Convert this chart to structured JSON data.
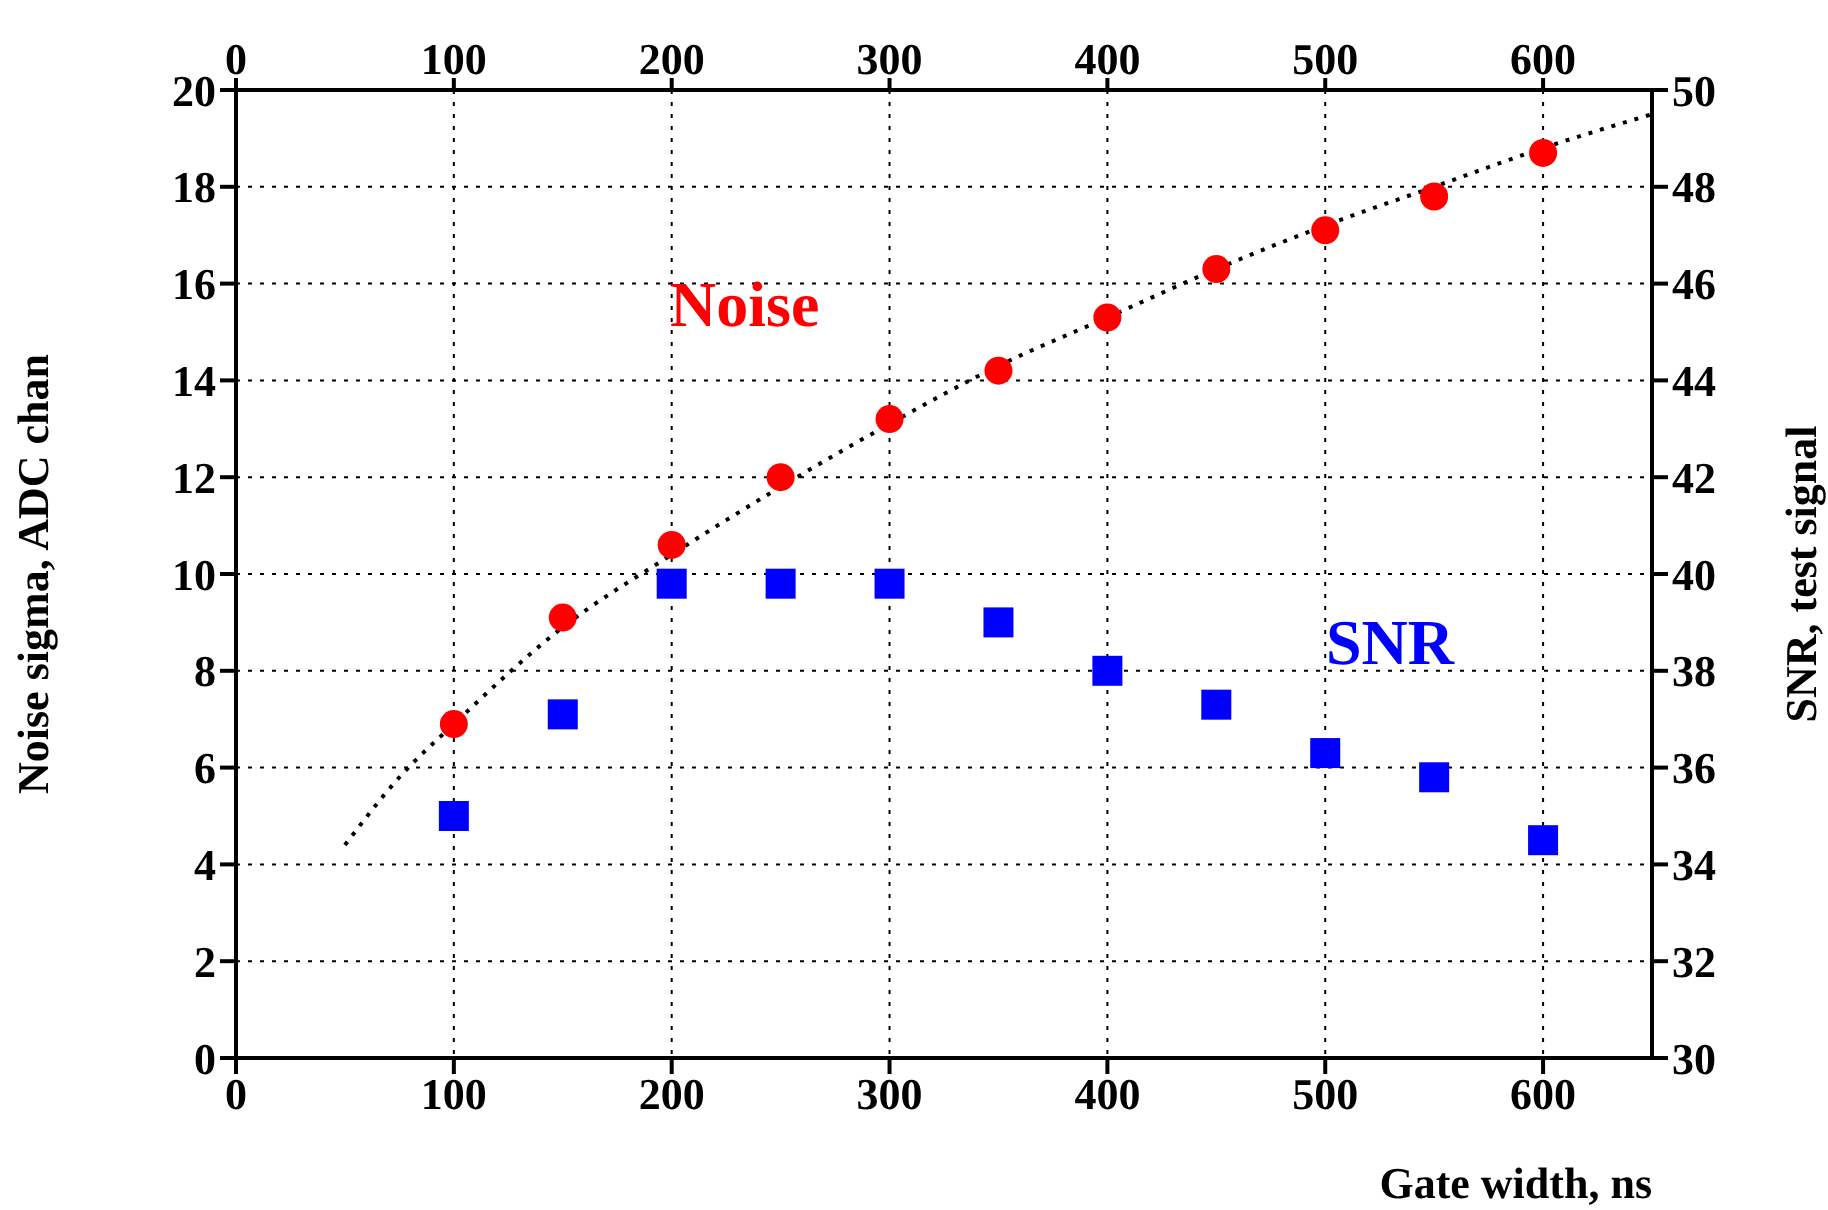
{
  "chart_data": {
    "type": "scatter",
    "xlabel": "Gate width, ns",
    "ylabel": "Noise sigma, ADC chan",
    "y2label": "SNR, test signal",
    "xlim": [
      0,
      650
    ],
    "xticks": [
      0,
      100,
      200,
      300,
      400,
      500,
      600
    ],
    "x2lim": [
      0,
      650
    ],
    "x2ticks": [
      0,
      100,
      200,
      300,
      400,
      500,
      600
    ],
    "ylim": [
      0,
      20
    ],
    "yticks": [
      0,
      2,
      4,
      6,
      8,
      10,
      12,
      14,
      16,
      18,
      20
    ],
    "y2lim": [
      30,
      50
    ],
    "y2ticks": [
      30,
      32,
      34,
      36,
      38,
      40,
      42,
      44,
      46,
      48,
      50
    ],
    "grid": true,
    "legend": false,
    "series": [
      {
        "name": "Noise",
        "marker": "circle",
        "color": "#ff0000",
        "x": [
          100,
          150,
          200,
          250,
          300,
          350,
          400,
          450,
          500,
          550,
          600
        ],
        "values": [
          6.9,
          9.1,
          10.6,
          12.0,
          13.2,
          14.2,
          15.3,
          16.3,
          17.1,
          17.8,
          18.7
        ]
      },
      {
        "name": "SNR",
        "marker": "square",
        "color": "#0000ff",
        "axis": "y2",
        "x": [
          100,
          150,
          200,
          250,
          300,
          350,
          400,
          450,
          500,
          550,
          600
        ],
        "values": [
          35.0,
          37.1,
          39.8,
          39.8,
          39.8,
          39.0,
          38.0,
          37.3,
          36.3,
          35.8,
          34.5
        ]
      },
      {
        "type": "line",
        "marker": "none",
        "line_style": "dotted",
        "color": "#000000",
        "x": [
          50,
          75,
          100,
          150,
          200,
          250,
          300,
          350,
          400,
          450,
          500,
          550,
          600,
          650
        ],
        "values": [
          4.4,
          5.8,
          6.9,
          8.9,
          10.4,
          11.8,
          13.1,
          14.3,
          15.3,
          16.3,
          17.2,
          18.0,
          18.8,
          19.5
        ]
      }
    ]
  }
}
